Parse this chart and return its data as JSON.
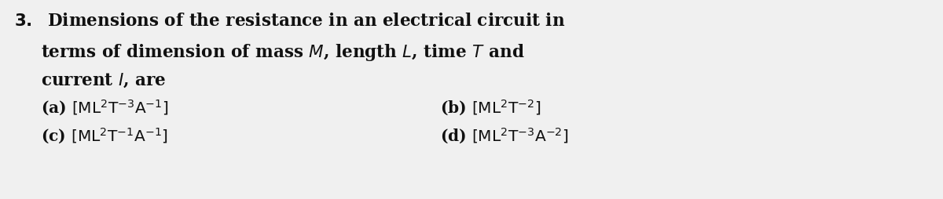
{
  "background_color": "#f0f0f0",
  "text_color": "#111111",
  "fontsize_main": 15.5,
  "fontsize_options": 14.5,
  "fig_width": 12.0,
  "fig_height": 2.54,
  "dpi": 100
}
